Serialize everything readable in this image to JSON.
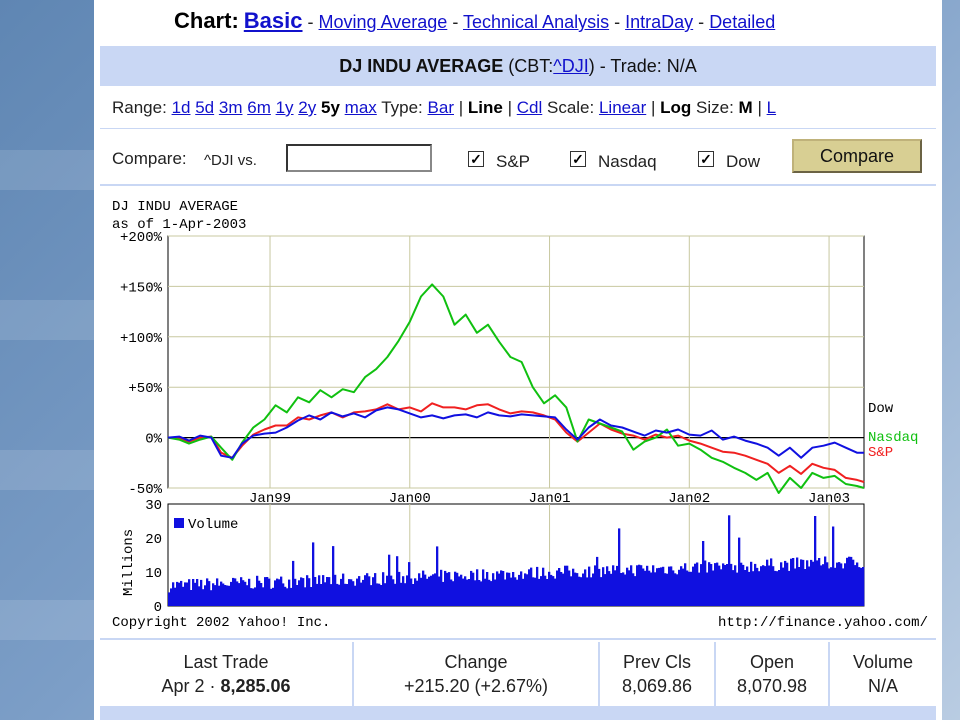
{
  "nav": {
    "prefix": "Chart:",
    "current": "Basic",
    "links": [
      "Moving Average",
      "Technical Analysis",
      "IntraDay",
      "Detailed"
    ],
    "separator": "-"
  },
  "title": {
    "name": "DJ INDU AVERAGE",
    "exchange_prefix": "(CBT:",
    "symbol": "^DJI",
    "trade_suffix": ") - Trade: N/A"
  },
  "range": {
    "label": "Range:",
    "options": [
      "1d",
      "5d",
      "3m",
      "6m",
      "1y",
      "2y",
      "5y",
      "max"
    ],
    "selected": "5y",
    "type_label": "Type:",
    "type_bar": "Bar",
    "type_line": "Line",
    "type_cdl": "Cdl",
    "scale_label": "Scale:",
    "scale_linear": "Linear",
    "scale_log": "Log",
    "size_label": "Size:",
    "size_m": "M",
    "size_l": "L",
    "pipe": "|"
  },
  "compare": {
    "label": "Compare:",
    "vs_text": "^DJI vs.",
    "input_value": "",
    "checkboxes": [
      {
        "label": "S&P",
        "checked": true
      },
      {
        "label": "Nasdaq",
        "checked": true
      },
      {
        "label": "Dow",
        "checked": true
      }
    ],
    "check_mark": "✓",
    "button": "Compare"
  },
  "chart_data": {
    "type": "line",
    "header_line1": "DJ INDU AVERAGE",
    "header_line2": "as of  1-Apr-2003",
    "y_tick_labels": [
      "+200%",
      "+150%",
      "+100%",
      "+50%",
      "0%",
      "-50%"
    ],
    "y_ticks": [
      200,
      150,
      100,
      50,
      0,
      -50
    ],
    "ylim": [
      -50,
      200
    ],
    "x_tick_labels": [
      "Jan99",
      "Jan00",
      "Jan01",
      "Jan02",
      "Jan03"
    ],
    "x_ticks": [
      1999.0,
      2000.0,
      2001.0,
      2002.0,
      2003.0
    ],
    "xlim": [
      1998.27,
      2003.25
    ],
    "x": [
      1998.27,
      1998.35,
      1998.42,
      1998.5,
      1998.58,
      1998.65,
      1998.73,
      1998.8,
      1998.88,
      1998.96,
      1999.04,
      1999.12,
      1999.2,
      1999.28,
      1999.36,
      1999.44,
      1999.52,
      1999.6,
      1999.68,
      1999.76,
      1999.84,
      1999.92,
      2000.0,
      2000.08,
      2000.16,
      2000.24,
      2000.32,
      2000.4,
      2000.48,
      2000.56,
      2000.64,
      2000.72,
      2000.8,
      2000.88,
      2000.96,
      2001.04,
      2001.12,
      2001.2,
      2001.28,
      2001.36,
      2001.44,
      2001.52,
      2001.6,
      2001.68,
      2001.76,
      2001.84,
      2001.92,
      2002.0,
      2002.08,
      2002.16,
      2002.24,
      2002.32,
      2002.4,
      2002.48,
      2002.56,
      2002.64,
      2002.72,
      2002.8,
      2002.88,
      2002.96,
      2003.04,
      2003.12,
      2003.2,
      2003.25
    ],
    "series": [
      {
        "name": "Dow",
        "color": "#1010e0",
        "values": [
          0,
          1,
          -3,
          2,
          0,
          -18,
          -20,
          -6,
          2,
          4,
          5,
          10,
          17,
          22,
          18,
          25,
          21,
          24,
          20,
          27,
          30,
          28,
          24,
          20,
          22,
          19,
          22,
          23,
          20,
          25,
          22,
          21,
          23,
          22,
          21,
          20,
          8,
          -2,
          10,
          18,
          12,
          10,
          6,
          2,
          7,
          5,
          8,
          3,
          2,
          7,
          -2,
          1,
          -3,
          -6,
          -10,
          -18,
          -10,
          -20,
          -10,
          -8,
          -5,
          -10,
          -15,
          -15
        ]
      },
      {
        "name": "Nasdaq",
        "color": "#10c010",
        "values": [
          0,
          -2,
          -6,
          -2,
          1,
          -10,
          -22,
          -5,
          10,
          18,
          32,
          25,
          40,
          35,
          47,
          40,
          48,
          45,
          60,
          68,
          80,
          96,
          115,
          140,
          152,
          140,
          112,
          122,
          104,
          112,
          95,
          80,
          75,
          50,
          34,
          42,
          30,
          -4,
          18,
          14,
          10,
          6,
          -12,
          -4,
          0,
          8,
          -8,
          -6,
          -12,
          -20,
          -24,
          -30,
          -35,
          -42,
          -35,
          -55,
          -40,
          -50,
          -35,
          -40,
          -38,
          -46,
          -48,
          -50
        ]
      },
      {
        "name": "S&P",
        "color": "#f02020",
        "values": [
          0,
          -1,
          -4,
          0,
          1,
          -15,
          -20,
          -8,
          3,
          8,
          12,
          12,
          20,
          18,
          22,
          25,
          20,
          25,
          26,
          28,
          33,
          28,
          30,
          26,
          34,
          30,
          30,
          28,
          32,
          33,
          28,
          24,
          26,
          25,
          22,
          18,
          5,
          -4,
          5,
          14,
          8,
          4,
          2,
          -2,
          3,
          0,
          2,
          -3,
          -6,
          -10,
          -14,
          -15,
          -18,
          -22,
          -26,
          -35,
          -28,
          -36,
          -26,
          -30,
          -32,
          -40,
          -42,
          -44
        ]
      }
    ],
    "end_labels": [
      {
        "name": "Dow",
        "color": "#000000"
      },
      {
        "name": "Nasdaq",
        "color": "#10c010"
      },
      {
        "name": "S&P",
        "color": "#f02020"
      }
    ],
    "volume": {
      "legend": "Volume",
      "ylabel": "Millions",
      "y_tick_labels": [
        "30",
        "20",
        "10",
        "0"
      ],
      "y_ticks": [
        30,
        20,
        10,
        0
      ],
      "ylim": [
        0,
        30
      ],
      "color": "#1010e0",
      "trend_start": 6,
      "trend_end": 13
    },
    "copyright": "Copyright 2002 Yahoo! Inc.",
    "source_url": "http://finance.yahoo.com/"
  },
  "stats": [
    {
      "title": "Last Trade",
      "value_prefix": "Apr 2 · ",
      "value_bold": "8,285.06"
    },
    {
      "title": "Change",
      "value_prefix": "+215.20 (+2.67%)",
      "value_bold": ""
    },
    {
      "title": "Prev Cls",
      "value_prefix": "8,069.86",
      "value_bold": ""
    },
    {
      "title": "Open",
      "value_prefix": "8,070.98",
      "value_bold": ""
    },
    {
      "title": "Volume",
      "value_prefix": "N/A",
      "value_bold": ""
    }
  ]
}
